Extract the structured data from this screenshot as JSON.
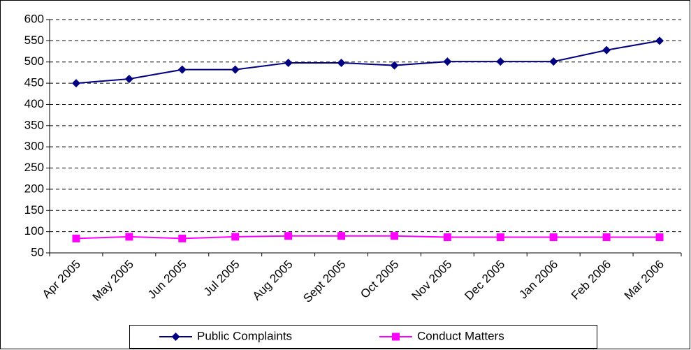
{
  "chart_data": {
    "type": "line",
    "categories": [
      "Apr 2005",
      "May 2005",
      "Jun 2005",
      "Jul 2005",
      "Aug 2005",
      "Sept 2005",
      "Oct 2005",
      "Nov 2005",
      "Dec 2005",
      "Jan 2006",
      "Feb 2006",
      "Mar 2006"
    ],
    "series": [
      {
        "name": "Public Complaints",
        "color": "#000080",
        "marker": "diamond",
        "values": [
          450,
          460,
          482,
          482,
          498,
          498,
          492,
          501,
          501,
          501,
          528,
          550
        ]
      },
      {
        "name": "Conduct Matters",
        "color": "#ff00ff",
        "marker": "square",
        "values": [
          84,
          88,
          84,
          88,
          90,
          90,
          90,
          87,
          87,
          87,
          87,
          87
        ]
      }
    ],
    "ylim": [
      50,
      600
    ],
    "yticks": [
      50,
      100,
      150,
      200,
      250,
      300,
      350,
      400,
      450,
      500,
      550,
      600
    ],
    "grid": true,
    "legend": "bottom"
  }
}
